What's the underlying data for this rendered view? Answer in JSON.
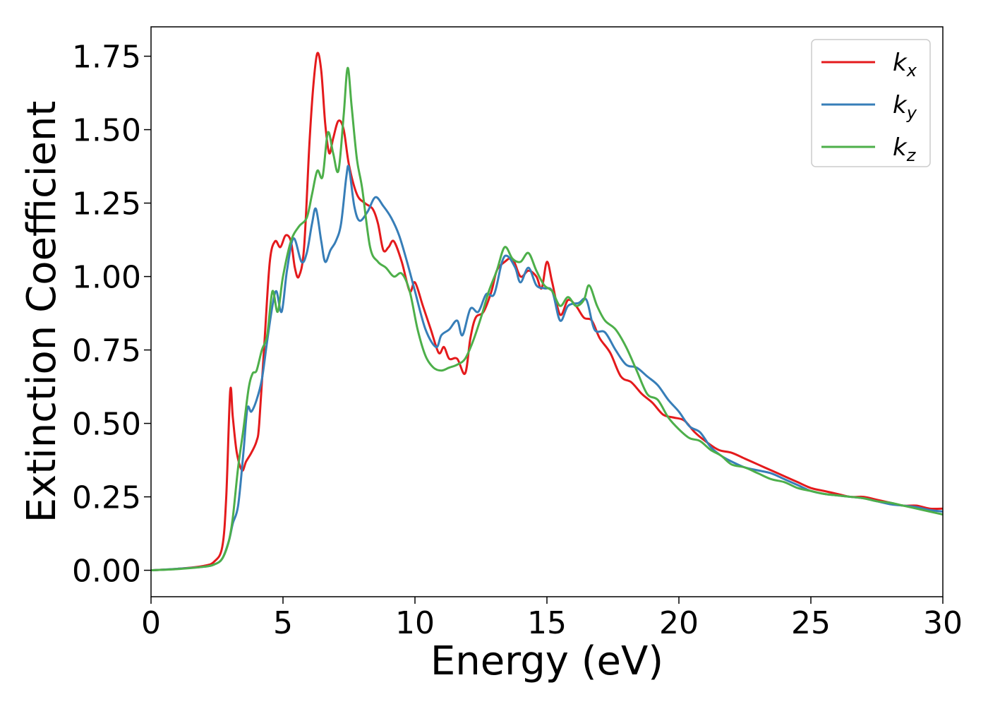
{
  "chart_data": {
    "type": "line",
    "title": "",
    "xlabel": "Energy (eV)",
    "ylabel": "Extinction Coefficient",
    "xlim": [
      0,
      30
    ],
    "ylim": [
      -0.09,
      1.85
    ],
    "xticks": [
      0,
      5,
      10,
      15,
      20,
      25,
      30
    ],
    "yticks": [
      0.0,
      0.25,
      0.5,
      0.75,
      1.0,
      1.25,
      1.5,
      1.75
    ],
    "xtick_labels": [
      "0",
      "5",
      "10",
      "15",
      "20",
      "25",
      "30"
    ],
    "ytick_labels": [
      "0.00",
      "0.25",
      "0.50",
      "0.75",
      "1.00",
      "1.25",
      "1.50",
      "1.75"
    ],
    "grid": false,
    "legend_position": "top-right",
    "series": [
      {
        "name": "k",
        "subscript": "x",
        "color": "#e41a1c",
        "points": [
          [
            0.0,
            0.0
          ],
          [
            1.0,
            0.005
          ],
          [
            2.0,
            0.015
          ],
          [
            2.4,
            0.03
          ],
          [
            2.7,
            0.08
          ],
          [
            2.85,
            0.25
          ],
          [
            3.0,
            0.61
          ],
          [
            3.1,
            0.52
          ],
          [
            3.25,
            0.4
          ],
          [
            3.45,
            0.34
          ],
          [
            3.6,
            0.37
          ],
          [
            3.8,
            0.4
          ],
          [
            4.0,
            0.44
          ],
          [
            4.1,
            0.5
          ],
          [
            4.3,
            0.78
          ],
          [
            4.5,
            1.05
          ],
          [
            4.7,
            1.12
          ],
          [
            4.9,
            1.1
          ],
          [
            5.1,
            1.14
          ],
          [
            5.3,
            1.12
          ],
          [
            5.45,
            1.03
          ],
          [
            5.6,
            1.0
          ],
          [
            5.8,
            1.1
          ],
          [
            6.0,
            1.45
          ],
          [
            6.15,
            1.65
          ],
          [
            6.3,
            1.76
          ],
          [
            6.45,
            1.7
          ],
          [
            6.6,
            1.52
          ],
          [
            6.75,
            1.42
          ],
          [
            6.9,
            1.47
          ],
          [
            7.1,
            1.53
          ],
          [
            7.3,
            1.5
          ],
          [
            7.5,
            1.38
          ],
          [
            7.8,
            1.28
          ],
          [
            8.1,
            1.25
          ],
          [
            8.4,
            1.23
          ],
          [
            8.6,
            1.18
          ],
          [
            8.8,
            1.09
          ],
          [
            9.0,
            1.1
          ],
          [
            9.2,
            1.12
          ],
          [
            9.5,
            1.05
          ],
          [
            9.8,
            0.95
          ],
          [
            10.0,
            0.98
          ],
          [
            10.3,
            0.9
          ],
          [
            10.6,
            0.82
          ],
          [
            10.9,
            0.74
          ],
          [
            11.1,
            0.76
          ],
          [
            11.3,
            0.72
          ],
          [
            11.6,
            0.72
          ],
          [
            11.9,
            0.67
          ],
          [
            12.1,
            0.79
          ],
          [
            12.3,
            0.86
          ],
          [
            12.6,
            0.88
          ],
          [
            12.9,
            0.95
          ],
          [
            13.1,
            1.02
          ],
          [
            13.4,
            1.05
          ],
          [
            13.7,
            1.06
          ],
          [
            14.0,
            1.0
          ],
          [
            14.3,
            1.02
          ],
          [
            14.6,
            1.0
          ],
          [
            14.8,
            0.96
          ],
          [
            15.0,
            1.05
          ],
          [
            15.2,
            0.98
          ],
          [
            15.5,
            0.87
          ],
          [
            15.8,
            0.92
          ],
          [
            16.1,
            0.9
          ],
          [
            16.4,
            0.86
          ],
          [
            16.7,
            0.85
          ],
          [
            17.0,
            0.79
          ],
          [
            17.4,
            0.74
          ],
          [
            17.8,
            0.66
          ],
          [
            18.2,
            0.64
          ],
          [
            18.6,
            0.6
          ],
          [
            19.0,
            0.57
          ],
          [
            19.4,
            0.53
          ],
          [
            19.8,
            0.52
          ],
          [
            20.2,
            0.51
          ],
          [
            20.6,
            0.47
          ],
          [
            21.0,
            0.44
          ],
          [
            21.5,
            0.41
          ],
          [
            22.0,
            0.4
          ],
          [
            22.5,
            0.38
          ],
          [
            23.0,
            0.36
          ],
          [
            23.5,
            0.34
          ],
          [
            24.0,
            0.32
          ],
          [
            24.5,
            0.3
          ],
          [
            25.0,
            0.28
          ],
          [
            25.5,
            0.27
          ],
          [
            26.0,
            0.26
          ],
          [
            26.5,
            0.25
          ],
          [
            27.0,
            0.25
          ],
          [
            27.5,
            0.24
          ],
          [
            28.0,
            0.23
          ],
          [
            28.5,
            0.22
          ],
          [
            29.0,
            0.22
          ],
          [
            29.5,
            0.21
          ],
          [
            30.0,
            0.21
          ]
        ]
      },
      {
        "name": "k",
        "subscript": "y",
        "color": "#377eb8",
        "points": [
          [
            0.0,
            0.0
          ],
          [
            1.0,
            0.005
          ],
          [
            2.0,
            0.012
          ],
          [
            2.4,
            0.02
          ],
          [
            2.7,
            0.04
          ],
          [
            2.95,
            0.1
          ],
          [
            3.1,
            0.16
          ],
          [
            3.3,
            0.22
          ],
          [
            3.5,
            0.4
          ],
          [
            3.65,
            0.55
          ],
          [
            3.8,
            0.54
          ],
          [
            4.0,
            0.58
          ],
          [
            4.2,
            0.65
          ],
          [
            4.4,
            0.78
          ],
          [
            4.6,
            0.9
          ],
          [
            4.75,
            0.95
          ],
          [
            4.95,
            0.88
          ],
          [
            5.15,
            1.02
          ],
          [
            5.4,
            1.13
          ],
          [
            5.7,
            1.05
          ],
          [
            5.9,
            1.08
          ],
          [
            6.1,
            1.18
          ],
          [
            6.25,
            1.23
          ],
          [
            6.45,
            1.12
          ],
          [
            6.6,
            1.05
          ],
          [
            6.8,
            1.09
          ],
          [
            7.0,
            1.12
          ],
          [
            7.2,
            1.18
          ],
          [
            7.4,
            1.34
          ],
          [
            7.5,
            1.37
          ],
          [
            7.7,
            1.24
          ],
          [
            7.9,
            1.19
          ],
          [
            8.2,
            1.22
          ],
          [
            8.5,
            1.27
          ],
          [
            8.8,
            1.24
          ],
          [
            9.1,
            1.2
          ],
          [
            9.4,
            1.14
          ],
          [
            9.7,
            1.05
          ],
          [
            10.0,
            0.95
          ],
          [
            10.4,
            0.82
          ],
          [
            10.8,
            0.76
          ],
          [
            11.0,
            0.8
          ],
          [
            11.3,
            0.82
          ],
          [
            11.6,
            0.85
          ],
          [
            11.8,
            0.8
          ],
          [
            12.1,
            0.89
          ],
          [
            12.4,
            0.88
          ],
          [
            12.7,
            0.94
          ],
          [
            13.0,
            0.94
          ],
          [
            13.3,
            1.05
          ],
          [
            13.5,
            1.07
          ],
          [
            13.8,
            1.03
          ],
          [
            14.0,
            0.98
          ],
          [
            14.3,
            1.03
          ],
          [
            14.6,
            0.97
          ],
          [
            14.9,
            0.96
          ],
          [
            15.2,
            0.95
          ],
          [
            15.5,
            0.85
          ],
          [
            15.8,
            0.9
          ],
          [
            16.2,
            0.91
          ],
          [
            16.5,
            0.92
          ],
          [
            16.8,
            0.82
          ],
          [
            17.2,
            0.81
          ],
          [
            17.6,
            0.75
          ],
          [
            18.0,
            0.7
          ],
          [
            18.4,
            0.69
          ],
          [
            18.8,
            0.66
          ],
          [
            19.2,
            0.63
          ],
          [
            19.6,
            0.58
          ],
          [
            20.0,
            0.54
          ],
          [
            20.4,
            0.49
          ],
          [
            20.8,
            0.47
          ],
          [
            21.2,
            0.42
          ],
          [
            21.6,
            0.39
          ],
          [
            22.0,
            0.37
          ],
          [
            22.5,
            0.35
          ],
          [
            23.0,
            0.34
          ],
          [
            23.5,
            0.33
          ],
          [
            24.0,
            0.31
          ],
          [
            24.5,
            0.29
          ],
          [
            25.0,
            0.27
          ],
          [
            25.5,
            0.26
          ],
          [
            26.0,
            0.255
          ],
          [
            26.5,
            0.25
          ],
          [
            27.0,
            0.245
          ],
          [
            27.5,
            0.235
          ],
          [
            28.0,
            0.225
          ],
          [
            28.5,
            0.22
          ],
          [
            29.0,
            0.215
          ],
          [
            29.5,
            0.205
          ],
          [
            30.0,
            0.2
          ]
        ]
      },
      {
        "name": "k",
        "subscript": "z",
        "color": "#4daf4a",
        "points": [
          [
            0.0,
            0.0
          ],
          [
            1.0,
            0.004
          ],
          [
            2.0,
            0.012
          ],
          [
            2.4,
            0.02
          ],
          [
            2.7,
            0.04
          ],
          [
            2.95,
            0.1
          ],
          [
            3.1,
            0.18
          ],
          [
            3.3,
            0.35
          ],
          [
            3.5,
            0.48
          ],
          [
            3.7,
            0.62
          ],
          [
            3.85,
            0.67
          ],
          [
            4.0,
            0.68
          ],
          [
            4.2,
            0.75
          ],
          [
            4.4,
            0.8
          ],
          [
            4.6,
            0.95
          ],
          [
            4.8,
            0.88
          ],
          [
            5.0,
            1.0
          ],
          [
            5.3,
            1.12
          ],
          [
            5.6,
            1.17
          ],
          [
            5.9,
            1.2
          ],
          [
            6.1,
            1.28
          ],
          [
            6.3,
            1.36
          ],
          [
            6.5,
            1.34
          ],
          [
            6.7,
            1.49
          ],
          [
            6.9,
            1.42
          ],
          [
            7.1,
            1.36
          ],
          [
            7.3,
            1.55
          ],
          [
            7.45,
            1.71
          ],
          [
            7.6,
            1.58
          ],
          [
            7.8,
            1.4
          ],
          [
            8.0,
            1.3
          ],
          [
            8.3,
            1.1
          ],
          [
            8.6,
            1.05
          ],
          [
            8.9,
            1.03
          ],
          [
            9.2,
            1.0
          ],
          [
            9.5,
            1.01
          ],
          [
            9.8,
            0.95
          ],
          [
            10.1,
            0.82
          ],
          [
            10.4,
            0.73
          ],
          [
            10.7,
            0.69
          ],
          [
            11.0,
            0.68
          ],
          [
            11.3,
            0.69
          ],
          [
            11.6,
            0.7
          ],
          [
            11.9,
            0.72
          ],
          [
            12.2,
            0.78
          ],
          [
            12.5,
            0.86
          ],
          [
            12.8,
            0.95
          ],
          [
            13.1,
            1.02
          ],
          [
            13.4,
            1.1
          ],
          [
            13.7,
            1.06
          ],
          [
            14.0,
            1.05
          ],
          [
            14.3,
            1.08
          ],
          [
            14.6,
            1.02
          ],
          [
            14.9,
            0.97
          ],
          [
            15.2,
            0.95
          ],
          [
            15.5,
            0.9
          ],
          [
            15.8,
            0.93
          ],
          [
            16.1,
            0.9
          ],
          [
            16.4,
            0.92
          ],
          [
            16.6,
            0.97
          ],
          [
            16.9,
            0.9
          ],
          [
            17.2,
            0.85
          ],
          [
            17.6,
            0.82
          ],
          [
            18.0,
            0.76
          ],
          [
            18.4,
            0.68
          ],
          [
            18.8,
            0.6
          ],
          [
            19.2,
            0.58
          ],
          [
            19.6,
            0.52
          ],
          [
            20.0,
            0.48
          ],
          [
            20.4,
            0.45
          ],
          [
            20.8,
            0.44
          ],
          [
            21.2,
            0.41
          ],
          [
            21.6,
            0.39
          ],
          [
            22.0,
            0.36
          ],
          [
            22.5,
            0.35
          ],
          [
            23.0,
            0.33
          ],
          [
            23.5,
            0.31
          ],
          [
            24.0,
            0.3
          ],
          [
            24.5,
            0.28
          ],
          [
            25.0,
            0.27
          ],
          [
            25.5,
            0.26
          ],
          [
            26.0,
            0.255
          ],
          [
            26.5,
            0.25
          ],
          [
            27.0,
            0.245
          ],
          [
            27.5,
            0.235
          ],
          [
            28.0,
            0.23
          ],
          [
            28.5,
            0.22
          ],
          [
            29.0,
            0.21
          ],
          [
            29.5,
            0.2
          ],
          [
            30.0,
            0.19
          ]
        ]
      }
    ]
  }
}
